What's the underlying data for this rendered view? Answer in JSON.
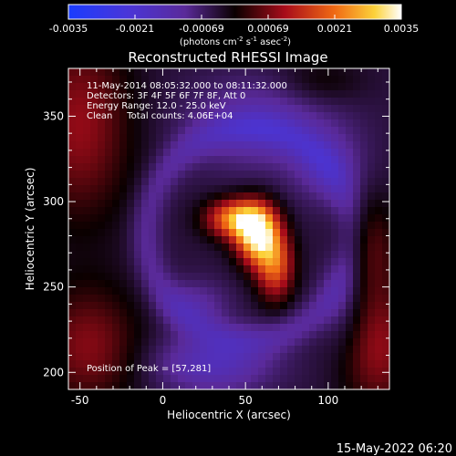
{
  "chart_data": {
    "type": "heatmap",
    "title": "Reconstructed RHESSI Image",
    "xlabel": "Heliocentric X (arcsec)",
    "ylabel": "Heliocentric Y (arcsec)",
    "xlim": [
      -57,
      137
    ],
    "ylim": [
      190,
      378
    ],
    "xticks": [
      -50,
      0,
      50,
      100
    ],
    "yticks": [
      200,
      250,
      300,
      350
    ],
    "colorbar": {
      "min": -0.0035,
      "max": 0.0035,
      "ticks": [
        "-0.0035",
        "-0.0021",
        "-0.00069",
        "0.00069",
        "0.0021",
        "0.0035"
      ],
      "unit_main": "(photons cm",
      "unit_sup1": "-2",
      "unit_mid1": " s",
      "unit_sup2": "-1",
      "unit_mid2": " asec",
      "unit_sup3": "-2",
      "unit_end": ")"
    },
    "annotations": [
      "11-May-2014 08:05:32.000 to 08:11:32.000",
      "Detectors: 3F 4F 5F 6F 7F 8F, Att 0",
      "Energy Range: 12.0 - 25.0 keV",
      "Clean     Total counts: 4.06E+04"
    ],
    "peak_label": "Position of Peak = [57,281]",
    "peak": [
      57,
      281
    ],
    "sources": [
      {
        "x": 57,
        "y": 281,
        "sx": 9,
        "sy": 12,
        "amp": 0.0037
      },
      {
        "x": 43,
        "y": 290,
        "sx": 12,
        "sy": 8,
        "amp": 0.0026
      },
      {
        "x": 68,
        "y": 262,
        "sx": 8,
        "sy": 14,
        "amp": 0.0022
      },
      {
        "x": -50,
        "y": 345,
        "sx": 22,
        "sy": 40,
        "amp": 0.0013
      },
      {
        "x": -45,
        "y": 215,
        "sx": 22,
        "sy": 25,
        "amp": 0.0012
      },
      {
        "x": 130,
        "y": 215,
        "sx": 16,
        "sy": 28,
        "amp": 0.0013
      },
      {
        "x": 125,
        "y": 275,
        "sx": 12,
        "sy": 20,
        "amp": 0.0008
      },
      {
        "x": 95,
        "y": 370,
        "sx": 18,
        "sy": 10,
        "amp": 0.0005
      },
      {
        "x": 20,
        "y": 240,
        "sx": 14,
        "sy": 10,
        "amp": -0.0007
      },
      {
        "x": 30,
        "y": 205,
        "sx": 25,
        "sy": 12,
        "amp": -0.0012
      },
      {
        "x": 60,
        "y": 345,
        "sx": 30,
        "sy": 18,
        "amp": -0.001
      },
      {
        "x": 100,
        "y": 320,
        "sx": 15,
        "sy": 15,
        "amp": -0.0008
      },
      {
        "x": 110,
        "y": 240,
        "sx": 10,
        "sy": 20,
        "amp": -0.0006
      }
    ],
    "background": -0.0004,
    "ring_amp": -0.0007
  },
  "timestamp": "15-May-2022 06:20"
}
